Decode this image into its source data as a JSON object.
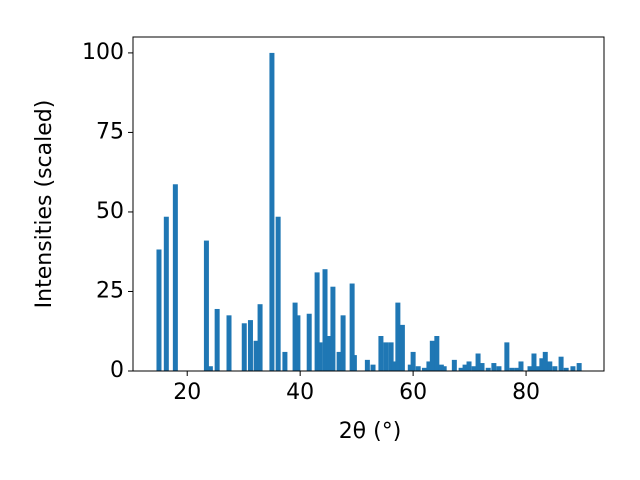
{
  "chart_data": {
    "type": "bar",
    "xlabel": "2θ (°)",
    "ylabel": "Intensities (scaled)",
    "color": "#1f77b4",
    "x": [
      15.0,
      16.3,
      17.9,
      23.4,
      24.1,
      25.3,
      27.4,
      30.1,
      31.2,
      32.2,
      32.9,
      35.0,
      36.1,
      37.3,
      39.1,
      39.6,
      41.6,
      43.0,
      43.5,
      44.4,
      45.1,
      45.8,
      46.9,
      47.6,
      49.2,
      49.6,
      51.9,
      52.9,
      54.3,
      55.2,
      56.1,
      56.6,
      57.3,
      58.1,
      59.5,
      60.0,
      60.9,
      62.0,
      62.8,
      63.4,
      64.2,
      65.0,
      65.5,
      67.3,
      68.5,
      69.2,
      69.9,
      70.8,
      71.5,
      72.2,
      73.3,
      74.3,
      75.2,
      76.6,
      77.5,
      78.4,
      79.1,
      80.7,
      81.4,
      82.1,
      82.8,
      83.4,
      84.2,
      85.1,
      86.2,
      87.1,
      88.3,
      89.4
    ],
    "values": [
      38.2,
      48.5,
      58.7,
      41,
      1.5,
      19.5,
      17.5,
      15,
      16,
      9.5,
      21,
      100,
      48.5,
      6,
      21.5,
      17.5,
      18,
      31,
      9,
      32,
      11,
      26.5,
      6,
      17.5,
      27.5,
      5,
      3.5,
      2,
      11,
      9,
      9,
      3,
      21.5,
      14.5,
      2,
      6,
      1.5,
      1,
      3,
      9.5,
      11,
      2,
      1.5,
      3.5,
      1,
      2,
      3,
      1.5,
      5.5,
      2.5,
      1,
      2.5,
      1.5,
      9,
      1,
      1,
      3,
      1.5,
      5.5,
      1.5,
      4,
      6,
      3,
      1.5,
      4.5,
      1,
      1.5,
      2.5
    ],
    "xlim": [
      10.4,
      93.8
    ],
    "ylim": [
      0,
      105
    ],
    "xticks": [
      20,
      40,
      60,
      80
    ],
    "yticks": [
      0,
      25,
      50,
      75,
      100
    ]
  }
}
